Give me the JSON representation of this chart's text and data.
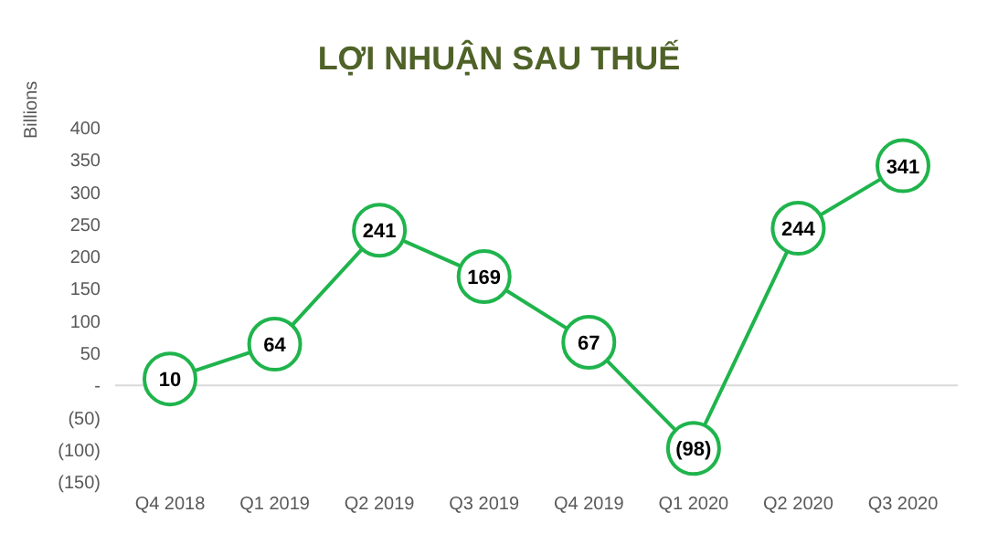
{
  "chart_data": {
    "type": "line",
    "title": "LỢI NHUẬN SAU THUẾ",
    "ylabel": "Billions",
    "categories": [
      "Q4 2018",
      "Q1 2019",
      "Q2 2019",
      "Q3 2019",
      "Q4 2019",
      "Q1 2020",
      "Q2 2020",
      "Q3 2020"
    ],
    "series": [
      {
        "color": "#1fb44c",
        "values": [
          10,
          64,
          241,
          169,
          67,
          -98,
          244,
          341
        ],
        "value_labels": [
          "10",
          "64",
          "241",
          "169",
          "67",
          "(98)",
          "244",
          "341"
        ]
      }
    ],
    "ylim": [
      -150,
      400
    ],
    "yticks": [
      {
        "value": -150,
        "label": "(150)"
      },
      {
        "value": -100,
        "label": "(100)"
      },
      {
        "value": -50,
        "label": "(50)"
      },
      {
        "value": 0,
        "label": "-"
      },
      50,
      100,
      150,
      200,
      250,
      300,
      350,
      400
    ],
    "ref_lines": [
      {
        "axis": "y",
        "value": 0,
        "color": "#d9d9d9"
      }
    ],
    "marker": "circle",
    "line_style": "solid",
    "grid": false,
    "legend": false
  }
}
